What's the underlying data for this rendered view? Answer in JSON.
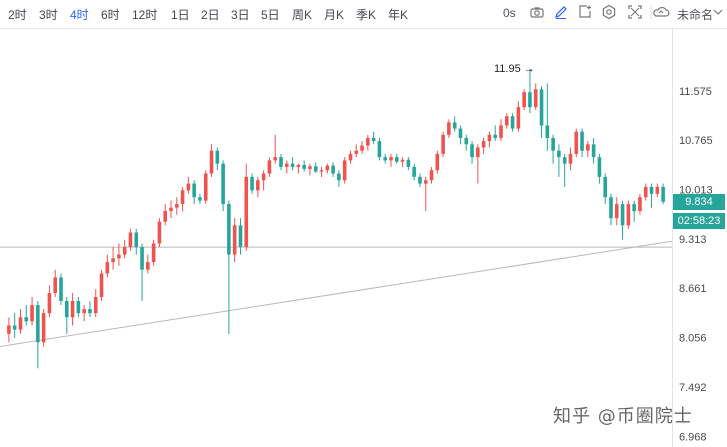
{
  "toolbar": {
    "timeframes": [
      "2时",
      "3时",
      "4时",
      "6时",
      "12时",
      "1日",
      "2日",
      "3日",
      "5日",
      "周K",
      "月K",
      "季K",
      "年K"
    ],
    "active_timeframe": "4时",
    "interval_readout": "0s",
    "layout_name": "未命名",
    "icons": [
      "camera-icon",
      "pencil-icon",
      "add-frame-icon",
      "settings-icon",
      "fullscreen-icon",
      "cloud-icon"
    ]
  },
  "price": {
    "current": "9.834",
    "countdown": "02:58:23",
    "high_marker": "11.95 →"
  },
  "watermark": "知乎 @币圈院士",
  "colors": {
    "up": "#ef5350",
    "down": "#26a69a",
    "badge": "#26a69a",
    "line": "#b0b0b0"
  },
  "chart_data": {
    "type": "candlestick",
    "y_ticks": [
      "11.575",
      "10.765",
      "10.013",
      "9.313",
      "8.661",
      "8.056",
      "7.492",
      "6.968"
    ],
    "y_tick_values": [
      11.575,
      10.765,
      10.013,
      9.313,
      8.661,
      8.056,
      7.492,
      6.968
    ],
    "ylim": [
      6.9,
      12.6
    ],
    "y_scale": "log",
    "current_price": 9.834,
    "high": 11.95,
    "horizontal_line": 9.2,
    "trendline": {
      "start": 7.95,
      "end": 9.28
    },
    "ohlc": [
      [
        8.1,
        8.3,
        8.0,
        8.2
      ],
      [
        8.2,
        8.35,
        8.05,
        8.15
      ],
      [
        8.15,
        8.4,
        8.1,
        8.3
      ],
      [
        8.3,
        8.45,
        8.2,
        8.25
      ],
      [
        8.25,
        8.55,
        8.2,
        8.45
      ],
      [
        8.45,
        8.5,
        7.7,
        8.0
      ],
      [
        8.0,
        8.4,
        7.95,
        8.35
      ],
      [
        8.35,
        8.7,
        8.3,
        8.6
      ],
      [
        8.6,
        8.9,
        8.55,
        8.8
      ],
      [
        8.8,
        8.85,
        8.45,
        8.5
      ],
      [
        8.5,
        8.55,
        8.1,
        8.3
      ],
      [
        8.3,
        8.6,
        8.2,
        8.5
      ],
      [
        8.5,
        8.55,
        8.3,
        8.35
      ],
      [
        8.35,
        8.45,
        8.25,
        8.4
      ],
      [
        8.4,
        8.5,
        8.3,
        8.35
      ],
      [
        8.35,
        8.65,
        8.3,
        8.55
      ],
      [
        8.55,
        8.9,
        8.5,
        8.85
      ],
      [
        8.85,
        9.1,
        8.8,
        9.0
      ],
      [
        9.0,
        9.2,
        8.9,
        9.05
      ],
      [
        9.05,
        9.25,
        8.95,
        9.1
      ],
      [
        9.1,
        9.3,
        9.05,
        9.2
      ],
      [
        9.2,
        9.45,
        9.15,
        9.4
      ],
      [
        9.4,
        9.45,
        9.1,
        9.2
      ],
      [
        9.2,
        9.25,
        8.5,
        8.9
      ],
      [
        8.9,
        9.1,
        8.85,
        9.0
      ],
      [
        9.0,
        9.3,
        8.95,
        9.25
      ],
      [
        9.25,
        9.6,
        9.2,
        9.55
      ],
      [
        9.55,
        9.8,
        9.5,
        9.7
      ],
      [
        9.7,
        9.85,
        9.6,
        9.75
      ],
      [
        9.75,
        9.9,
        9.65,
        9.8
      ],
      [
        9.8,
        10.05,
        9.7,
        10.0
      ],
      [
        10.0,
        10.2,
        9.95,
        10.1
      ],
      [
        10.1,
        10.15,
        9.8,
        9.9
      ],
      [
        9.9,
        9.95,
        9.8,
        9.85
      ],
      [
        9.85,
        10.3,
        9.8,
        10.25
      ],
      [
        10.25,
        10.7,
        10.2,
        10.6
      ],
      [
        10.6,
        10.65,
        10.3,
        10.4
      ],
      [
        10.4,
        10.45,
        9.7,
        9.8
      ],
      [
        9.8,
        9.85,
        8.1,
        9.1
      ],
      [
        9.1,
        9.6,
        9.0,
        9.5
      ],
      [
        9.5,
        9.6,
        9.1,
        9.2
      ],
      [
        9.2,
        10.4,
        9.15,
        10.2
      ],
      [
        10.2,
        10.25,
        9.95,
        10.0
      ],
      [
        10.0,
        10.2,
        9.9,
        10.15
      ],
      [
        10.15,
        10.3,
        10.0,
        10.25
      ],
      [
        10.25,
        10.5,
        10.2,
        10.45
      ],
      [
        10.45,
        10.85,
        10.4,
        10.5
      ],
      [
        10.5,
        10.55,
        10.3,
        10.35
      ],
      [
        10.35,
        10.45,
        10.25,
        10.4
      ],
      [
        10.4,
        10.5,
        10.3,
        10.35
      ],
      [
        10.35,
        10.4,
        10.25,
        10.38
      ],
      [
        10.38,
        10.45,
        10.28,
        10.32
      ],
      [
        10.32,
        10.4,
        10.22,
        10.36
      ],
      [
        10.36,
        10.42,
        10.26,
        10.28
      ],
      [
        10.28,
        10.35,
        10.2,
        10.3
      ],
      [
        10.3,
        10.4,
        10.25,
        10.37
      ],
      [
        10.37,
        10.42,
        10.2,
        10.25
      ],
      [
        10.25,
        10.3,
        10.05,
        10.15
      ],
      [
        10.15,
        10.5,
        10.1,
        10.45
      ],
      [
        10.45,
        10.6,
        10.4,
        10.55
      ],
      [
        10.55,
        10.7,
        10.5,
        10.6
      ],
      [
        10.6,
        10.75,
        10.55,
        10.68
      ],
      [
        10.68,
        10.85,
        10.6,
        10.8
      ],
      [
        10.8,
        10.9,
        10.7,
        10.75
      ],
      [
        10.75,
        10.8,
        10.45,
        10.5
      ],
      [
        10.5,
        10.55,
        10.4,
        10.45
      ],
      [
        10.45,
        10.55,
        10.35,
        10.5
      ],
      [
        10.5,
        10.55,
        10.4,
        10.43
      ],
      [
        10.43,
        10.5,
        10.35,
        10.46
      ],
      [
        10.46,
        10.5,
        10.3,
        10.35
      ],
      [
        10.35,
        10.4,
        10.15,
        10.2
      ],
      [
        10.2,
        10.25,
        10.05,
        10.1
      ],
      [
        10.1,
        10.2,
        9.7,
        10.15
      ],
      [
        10.15,
        10.35,
        10.1,
        10.3
      ],
      [
        10.3,
        10.6,
        10.25,
        10.55
      ],
      [
        10.55,
        10.9,
        10.5,
        10.85
      ],
      [
        10.85,
        11.1,
        10.8,
        11.05
      ],
      [
        11.05,
        11.15,
        10.9,
        10.95
      ],
      [
        10.95,
        11.0,
        10.7,
        10.8
      ],
      [
        10.8,
        10.85,
        10.6,
        10.7
      ],
      [
        10.7,
        10.75,
        10.4,
        10.5
      ],
      [
        10.5,
        10.7,
        10.1,
        10.65
      ],
      [
        10.65,
        10.8,
        10.55,
        10.75
      ],
      [
        10.75,
        10.9,
        10.65,
        10.85
      ],
      [
        10.85,
        11.0,
        10.75,
        10.8
      ],
      [
        10.8,
        11.1,
        10.75,
        11.0
      ],
      [
        11.0,
        11.2,
        10.95,
        11.15
      ],
      [
        11.15,
        11.2,
        10.9,
        10.95
      ],
      [
        10.95,
        11.4,
        10.9,
        11.3
      ],
      [
        11.3,
        11.6,
        11.25,
        11.55
      ],
      [
        11.55,
        11.95,
        11.2,
        11.3
      ],
      [
        11.3,
        11.7,
        11.25,
        11.6
      ],
      [
        11.6,
        11.65,
        10.8,
        11.0
      ],
      [
        11.0,
        11.7,
        10.6,
        10.8
      ],
      [
        10.8,
        10.85,
        10.4,
        10.6
      ],
      [
        10.6,
        10.7,
        10.2,
        10.5
      ],
      [
        10.5,
        10.55,
        10.05,
        10.4
      ],
      [
        10.4,
        10.65,
        10.3,
        10.55
      ],
      [
        10.55,
        10.95,
        10.5,
        10.9
      ],
      [
        10.9,
        10.95,
        10.5,
        10.6
      ],
      [
        10.6,
        10.75,
        10.5,
        10.7
      ],
      [
        10.7,
        10.8,
        10.4,
        10.5
      ],
      [
        10.5,
        10.55,
        10.1,
        10.2
      ],
      [
        10.2,
        10.25,
        9.8,
        9.9
      ],
      [
        9.9,
        9.95,
        9.5,
        9.6
      ],
      [
        9.6,
        9.9,
        9.5,
        9.8
      ],
      [
        9.8,
        9.85,
        9.3,
        9.5
      ],
      [
        9.5,
        9.85,
        9.45,
        9.8
      ],
      [
        9.8,
        9.85,
        9.55,
        9.7
      ],
      [
        9.7,
        9.95,
        9.65,
        9.9
      ],
      [
        9.9,
        10.1,
        9.85,
        10.05
      ],
      [
        10.05,
        10.1,
        9.75,
        9.95
      ],
      [
        9.95,
        10.1,
        9.9,
        10.05
      ],
      [
        10.05,
        10.1,
        9.8,
        9.834
      ]
    ]
  }
}
